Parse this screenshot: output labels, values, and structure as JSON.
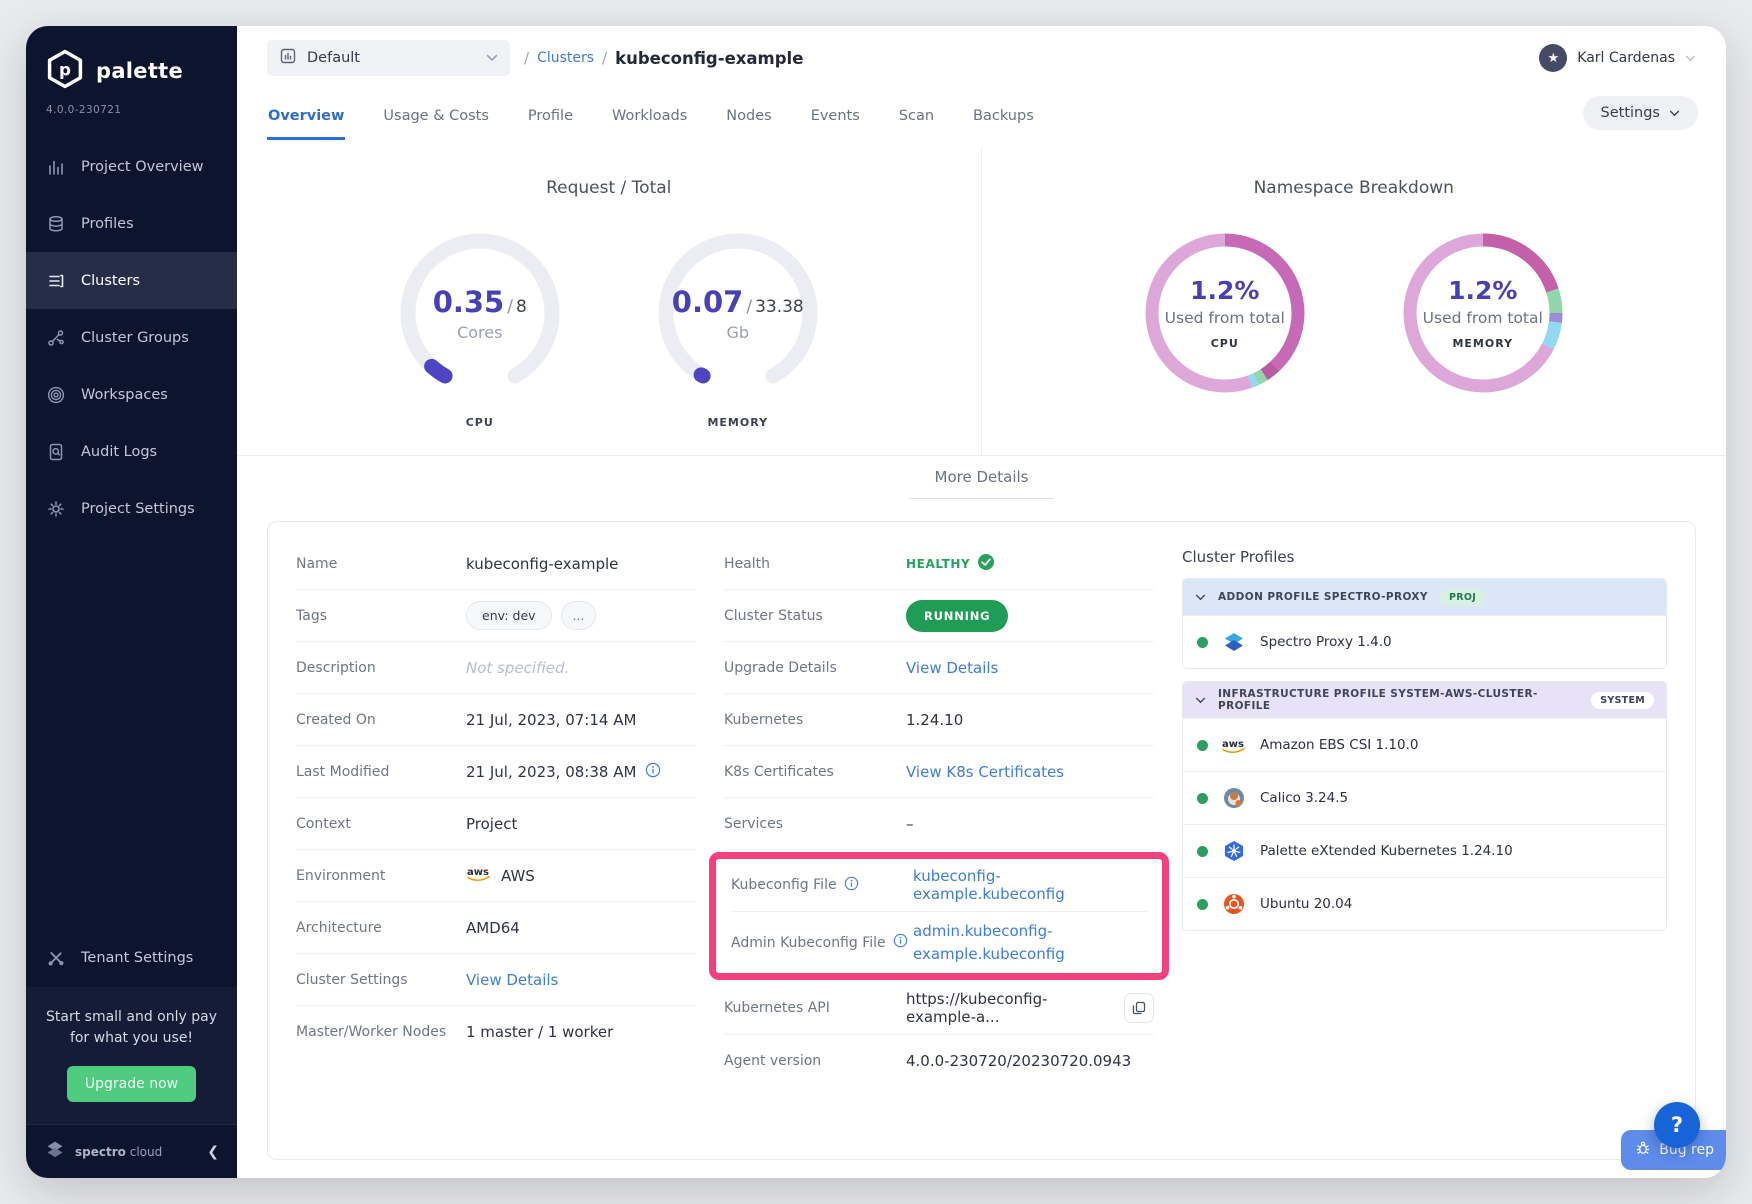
{
  "app": {
    "brand": "palette",
    "version": "4.0.0-230721",
    "footer_brand_bold": "spectro",
    "footer_brand_light": "cloud"
  },
  "sidebar": {
    "items": [
      {
        "label": "Project Overview",
        "icon": "bar-chart-icon"
      },
      {
        "label": "Profiles",
        "icon": "database-icon"
      },
      {
        "label": "Clusters",
        "icon": "cluster-list-icon",
        "active": true
      },
      {
        "label": "Cluster Groups",
        "icon": "network-icon"
      },
      {
        "label": "Workspaces",
        "icon": "concentric-rings-icon"
      },
      {
        "label": "Audit Logs",
        "icon": "document-search-icon"
      },
      {
        "label": "Project Settings",
        "icon": "gear-icon"
      }
    ],
    "tenant_label": "Tenant Settings",
    "promo_line1": "Start small and only pay",
    "promo_line2": "for what you use!",
    "upgrade_label": "Upgrade now"
  },
  "topbar": {
    "project_selector": "Default",
    "breadcrumb_sep": "/",
    "breadcrumb_section": "Clusters",
    "breadcrumb_current": "kubeconfig-example",
    "user_name": "Karl Cardenas"
  },
  "tabs": {
    "items": [
      "Overview",
      "Usage & Costs",
      "Profile",
      "Workloads",
      "Nodes",
      "Events",
      "Scan",
      "Backups"
    ],
    "active": "Overview",
    "settings_label": "Settings"
  },
  "charts": {
    "request_total_title": "Request / Total",
    "namespace_title": "Namespace Breakdown",
    "more_details_label": "More Details",
    "value_separator": "/"
  },
  "chart_data": [
    {
      "id": "cpu-gauge",
      "type": "gauge",
      "value": 0.35,
      "max": 8,
      "unit": "Cores",
      "label": "CPU",
      "color": "#4F45C2",
      "track": "#ECEDF2"
    },
    {
      "id": "memory-gauge",
      "type": "gauge",
      "value": 0.07,
      "max": 33.38,
      "unit": "Gb",
      "label": "MEMORY",
      "color": "#4F45C2",
      "track": "#ECEDF2"
    },
    {
      "id": "cpu-donut",
      "type": "donut",
      "percent": "1.2%",
      "caption": "Used from total",
      "label": "CPU",
      "segments": [
        {
          "color": "#C669B7",
          "value": 38
        },
        {
          "color": "#B85C9F",
          "value": 3
        },
        {
          "color": "#8FD6AB",
          "value": 2
        },
        {
          "color": "#92D8EE",
          "value": 1.4
        },
        {
          "color": "#DEA7D9",
          "value": 55.6
        }
      ]
    },
    {
      "id": "memory-donut",
      "type": "donut",
      "percent": "1.2%",
      "caption": "Used from total",
      "label": "MEMORY",
      "segments": [
        {
          "color": "#C45FA9",
          "value": 20
        },
        {
          "color": "#8FD6AB",
          "value": 5
        },
        {
          "color": "#9B8BDC",
          "value": 2
        },
        {
          "color": "#92D8EE",
          "value": 5.5
        },
        {
          "color": "#DEA7D9",
          "value": 67.5
        }
      ]
    }
  ],
  "details": {
    "left": [
      {
        "label": "Name",
        "value": "kubeconfig-example"
      },
      {
        "label": "Tags",
        "tags": [
          "env: dev",
          "..."
        ]
      },
      {
        "label": "Description",
        "value": "Not specified."
      },
      {
        "label": "Created On",
        "value": "21 Jul, 2023, 07:14 AM"
      },
      {
        "label": "Last Modified",
        "value": "21 Jul, 2023, 08:38 AM"
      },
      {
        "label": "Context",
        "value": "Project"
      },
      {
        "label": "Environment",
        "value": "AWS"
      },
      {
        "label": "Architecture",
        "value": "AMD64"
      },
      {
        "label": "Cluster Settings",
        "value": "View Details"
      },
      {
        "label": "Master/Worker Nodes",
        "value": "1 master / 1 worker"
      }
    ],
    "middle": [
      {
        "label": "Health",
        "value": "HEALTHY"
      },
      {
        "label": "Cluster Status",
        "value": "RUNNING"
      },
      {
        "label": "Upgrade Details",
        "value": "View Details"
      },
      {
        "label": "Kubernetes",
        "value": "1.24.10"
      },
      {
        "label": "K8s Certificates",
        "value": "View K8s Certificates"
      },
      {
        "label": "Services",
        "value": "–"
      },
      {
        "label": "Kubeconfig File",
        "value": "kubeconfig-example.kubeconfig"
      },
      {
        "label": "Admin Kubeconfig File",
        "value": "admin.kubeconfig-example.kubeconfig"
      },
      {
        "label": "Kubernetes API",
        "value": "https://kubeconfig-example-a..."
      },
      {
        "label": "Agent version",
        "value": "4.0.0-230720/20230720.0943"
      }
    ],
    "profiles": {
      "title": "Cluster Profiles",
      "groups": [
        {
          "header": "ADDON PROFILE SPECTRO-PROXY",
          "badge": "PROJ",
          "items": [
            {
              "label": "Spectro Proxy 1.4.0",
              "icon": "spectro-proxy-icon"
            }
          ]
        },
        {
          "header": "INFRASTRUCTURE PROFILE SYSTEM-AWS-CLUSTER-PROFILE",
          "badge": "SYSTEM",
          "items": [
            {
              "label": "Amazon EBS CSI 1.10.0",
              "icon": "aws-icon"
            },
            {
              "label": "Calico 3.24.5",
              "icon": "calico-icon"
            },
            {
              "label": "Palette eXtended Kubernetes 1.24.10",
              "icon": "kubernetes-icon"
            },
            {
              "label": "Ubuntu 20.04",
              "icon": "ubuntu-icon"
            }
          ]
        }
      ]
    }
  },
  "floating": {
    "help_label": "?",
    "bug_report_label": "Bug rep"
  },
  "colors": {
    "link_blue": "#3E7CDF",
    "status_green": "#27A45C",
    "running_badge_green": "#1F9D57",
    "accent_purple": "#4A3FB5",
    "highlight_pink": "#F4417E",
    "sidebar_bg": "#0D142E",
    "upgrade_green": "#4ECB7F"
  }
}
